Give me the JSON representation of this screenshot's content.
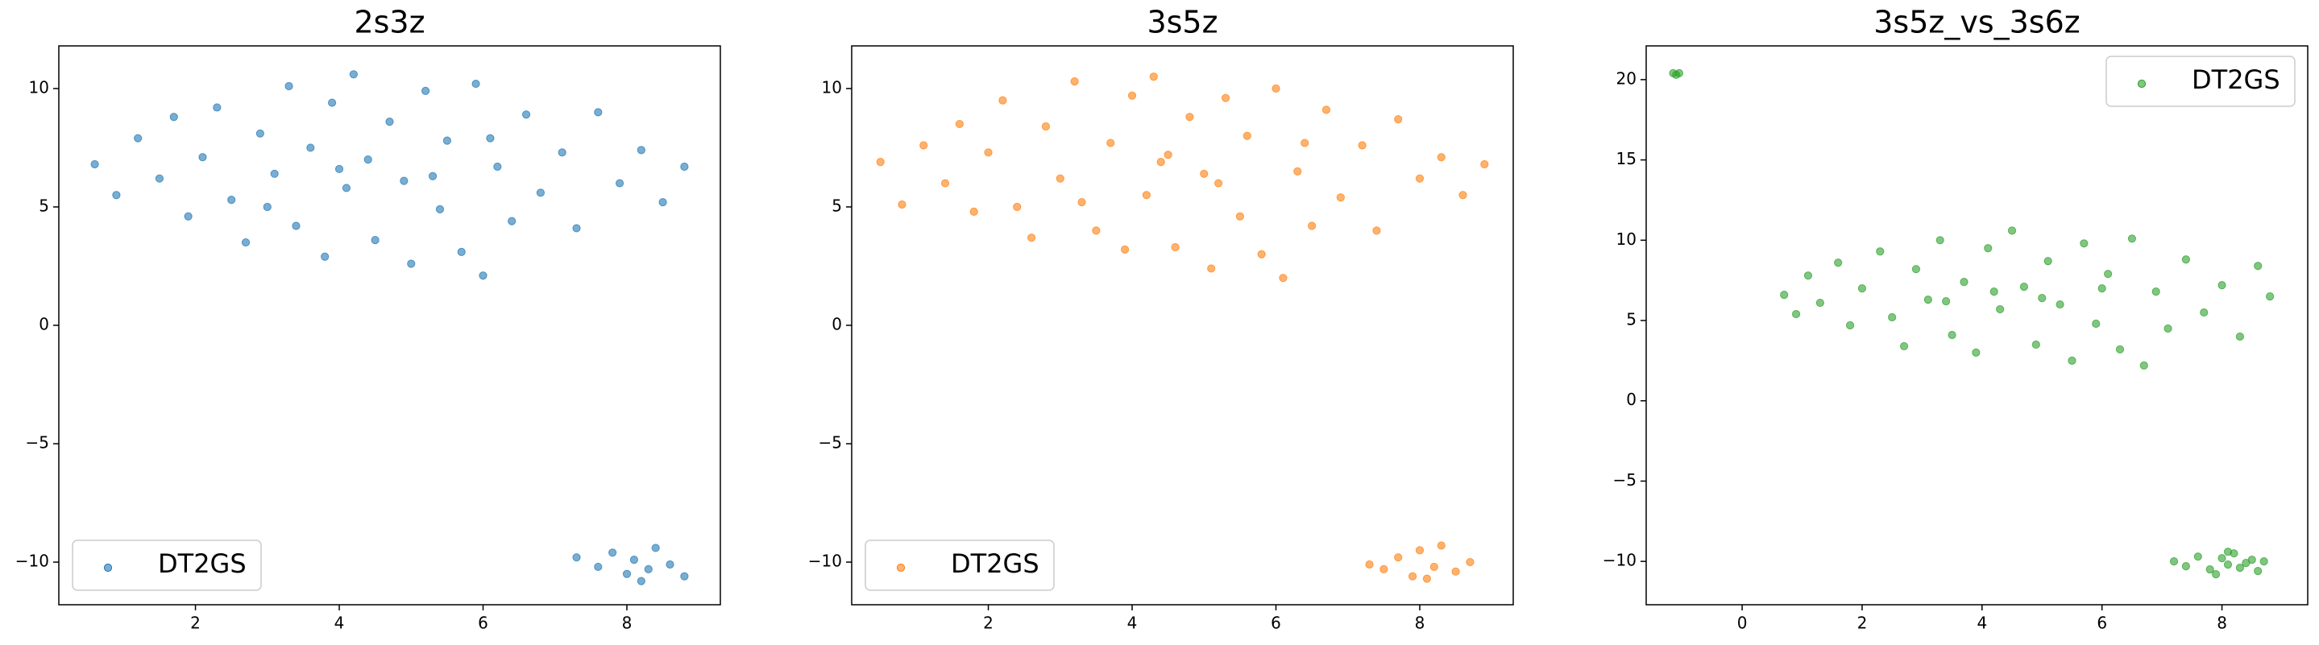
{
  "chart_data": [
    {
      "type": "scatter",
      "title": "2s3z",
      "legend": "lower left",
      "xlim": [
        0.1,
        9.3
      ],
      "ylim": [
        -11.8,
        11.8
      ],
      "xticks": [
        2,
        4,
        6,
        8
      ],
      "yticks": [
        {
          "value": -10,
          "label": "−10"
        },
        {
          "value": -5,
          "label": "−5"
        },
        0,
        5,
        10
      ],
      "series": [
        {
          "name": "DT2GS",
          "color": "#1f77b4",
          "x": [
            0.6,
            0.9,
            1.2,
            1.5,
            1.7,
            1.9,
            2.1,
            2.3,
            2.5,
            2.7,
            2.9,
            3.1,
            3.3,
            3.4,
            3.6,
            3.8,
            3.9,
            4.1,
            4.2,
            4.4,
            4.5,
            4.7,
            4.9,
            5.0,
            5.2,
            5.4,
            5.5,
            5.7,
            5.9,
            6.0,
            6.2,
            6.4,
            6.6,
            6.8,
            7.1,
            7.3,
            7.6,
            7.9,
            8.2,
            8.5,
            8.8,
            3.0,
            4.0,
            5.3,
            6.1,
            7.3,
            7.6,
            7.8,
            8.0,
            8.1,
            8.3,
            8.4,
            8.6,
            8.8,
            8.2
          ],
          "y": [
            6.8,
            5.5,
            7.9,
            6.2,
            8.8,
            4.6,
            7.1,
            9.2,
            5.3,
            3.5,
            8.1,
            6.4,
            10.1,
            4.2,
            7.5,
            2.9,
            9.4,
            5.8,
            10.6,
            7.0,
            3.6,
            8.6,
            6.1,
            2.6,
            9.9,
            4.9,
            7.8,
            3.1,
            10.2,
            2.1,
            6.7,
            4.4,
            8.9,
            5.6,
            7.3,
            4.1,
            9.0,
            6.0,
            7.4,
            5.2,
            6.7,
            5.0,
            6.6,
            6.3,
            7.9,
            -9.8,
            -10.2,
            -9.6,
            -10.5,
            -9.9,
            -10.3,
            -9.4,
            -10.1,
            -10.6,
            -10.8
          ]
        }
      ]
    },
    {
      "type": "scatter",
      "title": "3s5z",
      "legend": "lower left",
      "xlim": [
        0.1,
        9.3
      ],
      "ylim": [
        -11.8,
        11.8
      ],
      "xticks": [
        2,
        4,
        6,
        8
      ],
      "yticks": [
        {
          "value": -10,
          "label": "−10"
        },
        {
          "value": -5,
          "label": "−5"
        },
        0,
        5,
        10
      ],
      "series": [
        {
          "name": "DT2GS",
          "color": "#ff7f0e",
          "x": [
            0.5,
            0.8,
            1.1,
            1.4,
            1.6,
            1.8,
            2.0,
            2.2,
            2.4,
            2.6,
            2.8,
            3.0,
            3.2,
            3.5,
            3.7,
            3.9,
            4.0,
            4.2,
            4.3,
            4.5,
            4.6,
            4.8,
            5.0,
            5.1,
            5.3,
            5.5,
            5.6,
            5.8,
            6.0,
            6.1,
            6.3,
            6.5,
            6.7,
            6.9,
            7.2,
            7.4,
            7.7,
            8.0,
            8.3,
            8.6,
            8.9,
            3.3,
            4.4,
            5.2,
            6.4,
            7.3,
            7.5,
            7.7,
            7.9,
            8.0,
            8.2,
            8.3,
            8.5,
            8.7,
            8.1
          ],
          "y": [
            6.9,
            5.1,
            7.6,
            6.0,
            8.5,
            4.8,
            7.3,
            9.5,
            5.0,
            3.7,
            8.4,
            6.2,
            10.3,
            4.0,
            7.7,
            3.2,
            9.7,
            5.5,
            10.5,
            7.2,
            3.3,
            8.8,
            6.4,
            2.4,
            9.6,
            4.6,
            8.0,
            3.0,
            10.0,
            2.0,
            6.5,
            4.2,
            9.1,
            5.4,
            7.6,
            4.0,
            8.7,
            6.2,
            7.1,
            5.5,
            6.8,
            5.2,
            6.9,
            6.0,
            7.7,
            -10.1,
            -10.3,
            -9.8,
            -10.6,
            -9.5,
            -10.2,
            -9.3,
            -10.4,
            -10.0,
            -10.7
          ]
        }
      ]
    },
    {
      "type": "scatter",
      "title": "3s5z_vs_3s6z",
      "legend": "upper right",
      "xlim": [
        -1.6,
        9.43
      ],
      "ylim": [
        -12.7,
        22.1
      ],
      "xticks": [
        0,
        2,
        4,
        6,
        8
      ],
      "yticks": [
        {
          "value": -10,
          "label": "−10"
        },
        {
          "value": -5,
          "label": "−5"
        },
        0,
        5,
        10,
        15,
        20
      ],
      "series": [
        {
          "name": "DT2GS",
          "color": "#2ca02c",
          "x": [
            -1.15,
            -1.05,
            -1.1,
            0.7,
            0.9,
            1.1,
            1.3,
            1.6,
            1.8,
            2.0,
            2.3,
            2.5,
            2.7,
            2.9,
            3.1,
            3.3,
            3.5,
            3.7,
            3.9,
            4.1,
            4.3,
            4.5,
            4.7,
            4.9,
            5.1,
            5.3,
            5.5,
            5.7,
            5.9,
            6.1,
            6.3,
            6.5,
            6.7,
            6.9,
            7.1,
            7.4,
            7.7,
            8.0,
            8.3,
            8.6,
            8.8,
            3.4,
            4.2,
            5.0,
            6.0,
            7.2,
            7.4,
            7.6,
            7.8,
            8.0,
            8.1,
            8.2,
            8.3,
            8.4,
            8.5,
            8.6,
            8.7,
            7.9,
            8.1
          ],
          "y": [
            20.4,
            20.4,
            20.3,
            6.6,
            5.4,
            7.8,
            6.1,
            8.6,
            4.7,
            7.0,
            9.3,
            5.2,
            3.4,
            8.2,
            6.3,
            10.0,
            4.1,
            7.4,
            3.0,
            9.5,
            5.7,
            10.6,
            7.1,
            3.5,
            8.7,
            6.0,
            2.5,
            9.8,
            4.8,
            7.9,
            3.2,
            10.1,
            2.2,
            6.8,
            4.5,
            8.8,
            5.5,
            7.2,
            4.0,
            8.4,
            6.5,
            6.2,
            6.8,
            6.4,
            7.0,
            -10.0,
            -10.3,
            -9.7,
            -10.5,
            -9.8,
            -10.2,
            -9.5,
            -10.4,
            -10.1,
            -9.9,
            -10.6,
            -10.0,
            -10.8,
            -9.4
          ]
        }
      ]
    }
  ]
}
